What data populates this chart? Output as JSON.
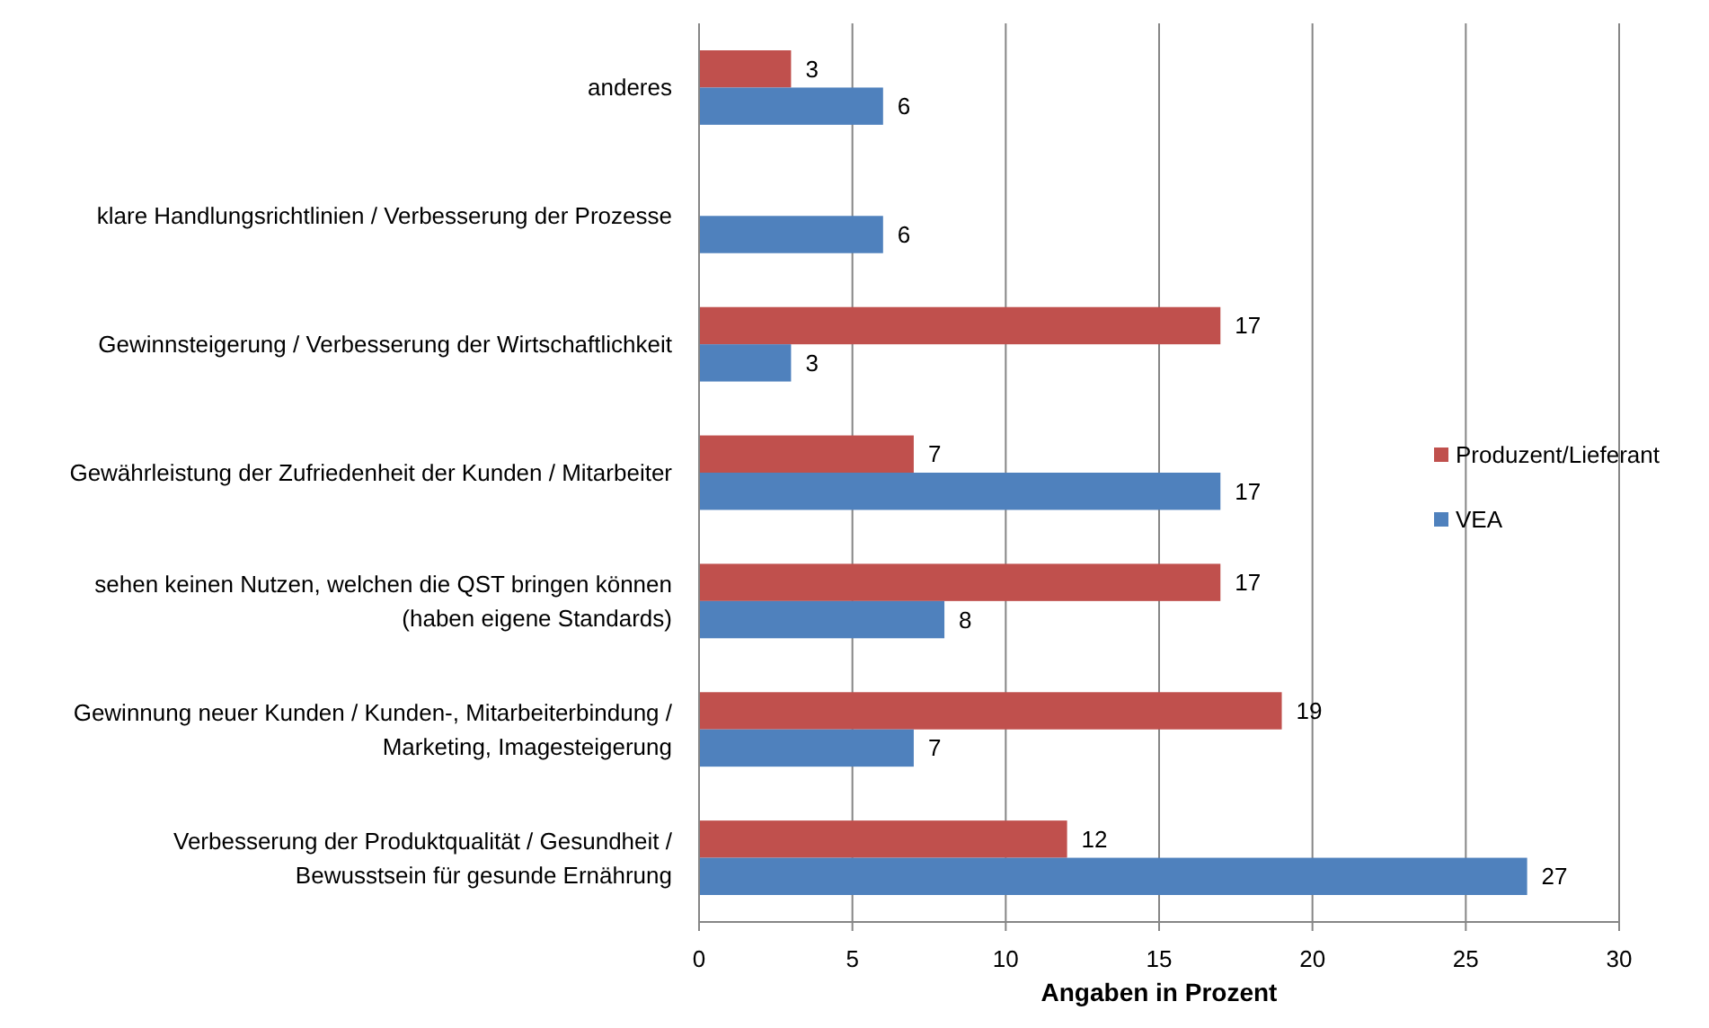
{
  "chart_data": {
    "type": "bar",
    "orientation": "horizontal",
    "categories": [
      "anderes",
      "klare Handlungsrichtlinien / Verbesserung der Prozesse",
      "Gewinnsteigerung / Verbesserung der Wirtschaftlichkeit",
      "Gewährleistung der Zufriedenheit der Kunden / Mitarbeiter",
      "sehen keinen Nutzen, welchen die QST bringen können (haben eigene Standards)",
      "Gewinnung neuer Kunden / Kunden-, Mitarbeiterbindung / Marketing, Imagesteigerung",
      "Verbesserung der Produktqualität / Gesundheit / Bewusstsein für gesunde Ernährung"
    ],
    "series": [
      {
        "name": "Produzent/Lieferant",
        "color": "#c0504d",
        "values": [
          3,
          null,
          17,
          7,
          17,
          19,
          12
        ]
      },
      {
        "name": "VEA",
        "color": "#4f81bd",
        "values": [
          6,
          6,
          3,
          17,
          8,
          7,
          27
        ]
      }
    ],
    "xlim": [
      0,
      30
    ],
    "xticks": [
      0,
      5,
      10,
      15,
      20,
      25,
      30
    ],
    "xlabel": "Angaben in Prozent",
    "grid": "x",
    "legend": "right",
    "data_labels": true
  }
}
